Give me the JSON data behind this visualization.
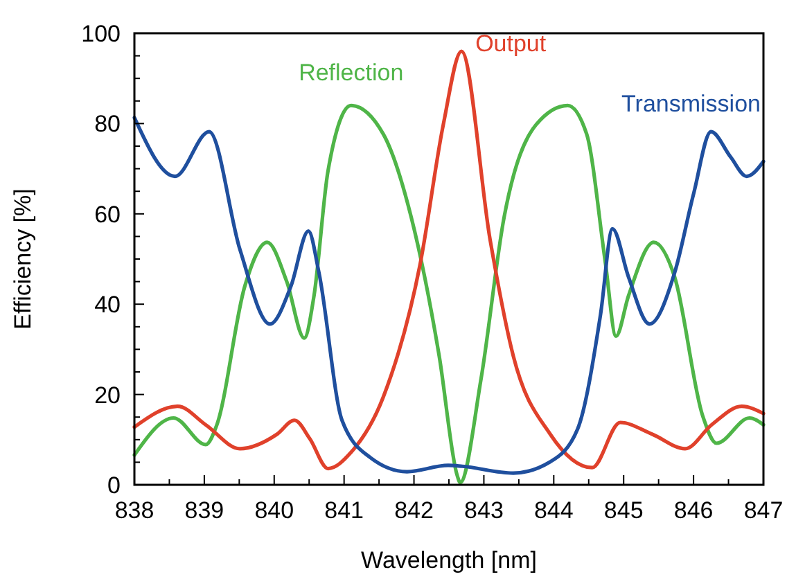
{
  "chart_data": {
    "type": "line",
    "xlabel": "Wavelength [nm]",
    "ylabel": "Efficiency [%]",
    "xlim": [
      838,
      847
    ],
    "ylim": [
      0,
      100
    ],
    "xticks": [
      838,
      {
        "value": 838.5,
        "label": null
      },
      839,
      {
        "value": 839.5,
        "label": null
      },
      840,
      {
        "value": 840.5,
        "label": null
      },
      841,
      {
        "value": 841.5,
        "label": null
      },
      842,
      {
        "value": 842.5,
        "label": null
      },
      843,
      {
        "value": 843.5,
        "label": null
      },
      844,
      {
        "value": 844.5,
        "label": null
      },
      845,
      {
        "value": 845.5,
        "label": null
      },
      846,
      {
        "value": 846.5,
        "label": null
      },
      847
    ],
    "yticks": [
      0,
      {
        "value": 5,
        "label": null
      },
      {
        "value": 10,
        "label": null
      },
      {
        "value": 15,
        "label": null
      },
      20,
      {
        "value": 25,
        "label": null
      },
      {
        "value": 30,
        "label": null
      },
      {
        "value": 35,
        "label": null
      },
      40,
      {
        "value": 45,
        "label": null
      },
      {
        "value": 50,
        "label": null
      },
      {
        "value": 55,
        "label": null
      },
      60,
      {
        "value": 65,
        "label": null
      },
      {
        "value": 70,
        "label": null
      },
      {
        "value": 75,
        "label": null
      },
      80,
      {
        "value": 85,
        "label": null
      },
      {
        "value": 90,
        "label": null
      },
      {
        "value": 95,
        "label": null
      },
      100
    ],
    "grid": false,
    "legend": false,
    "marker": "none",
    "line_style": "solid",
    "series": [
      {
        "name": "Reflection",
        "color": "#4fb548",
        "x": [
          838,
          838.56,
          839.02,
          839.18,
          839.58,
          839.9,
          840.18,
          840.43,
          840.57,
          840.77,
          841.1,
          841.56,
          841.96,
          842.36,
          842.62,
          842.66,
          842.96,
          843.29,
          843.75,
          844.2,
          844.47,
          844.74,
          844.89,
          845.07,
          845.43,
          845.73,
          846.13,
          846.33,
          846.8,
          847
        ],
        "values": [
          6.6,
          14.8,
          8.9,
          13.3,
          44,
          53.7,
          45,
          32.5,
          41.9,
          69.5,
          84,
          77.7,
          59.3,
          28.6,
          2,
          0.5,
          23.5,
          59.3,
          79.8,
          84,
          77.7,
          49,
          32.9,
          41.9,
          53.7,
          46,
          15.3,
          9.2,
          14.8,
          13.3
        ]
      },
      {
        "name": "Output",
        "color": "#e0412b",
        "x": [
          838,
          838.62,
          839.02,
          839.51,
          840.04,
          840.29,
          840.51,
          840.77,
          841.1,
          841.56,
          842.09,
          842.42,
          842.68,
          843.09,
          843.42,
          843.95,
          844.55,
          844.95,
          845.41,
          845.88,
          846.26,
          846.69,
          847
        ],
        "values": [
          12.8,
          17.4,
          13.3,
          8,
          11.2,
          14.3,
          10.2,
          3.6,
          7.2,
          19.4,
          49,
          79.8,
          96,
          54.2,
          28.6,
          11.2,
          3.8,
          13.8,
          11.2,
          8,
          13.3,
          17.4,
          15.8
        ]
      },
      {
        "name": "Transmission",
        "color": "#1f4f9e",
        "x": [
          838,
          838.58,
          839.07,
          839.51,
          839.94,
          840.24,
          840.49,
          840.64,
          840.97,
          841.37,
          841.9,
          842.49,
          842.69,
          843.42,
          843.95,
          844.34,
          844.67,
          844.84,
          845.07,
          845.37,
          845.73,
          846,
          846.25,
          846.53,
          846.76,
          847
        ],
        "values": [
          81.3,
          68.3,
          78.2,
          52.1,
          35.6,
          44,
          56.2,
          47,
          14.3,
          6.1,
          2.9,
          4.3,
          4.1,
          2.6,
          5.1,
          12.3,
          37.8,
          56.7,
          46,
          35.6,
          47,
          64.4,
          78.2,
          72.6,
          68.3,
          71.6
        ]
      }
    ]
  }
}
